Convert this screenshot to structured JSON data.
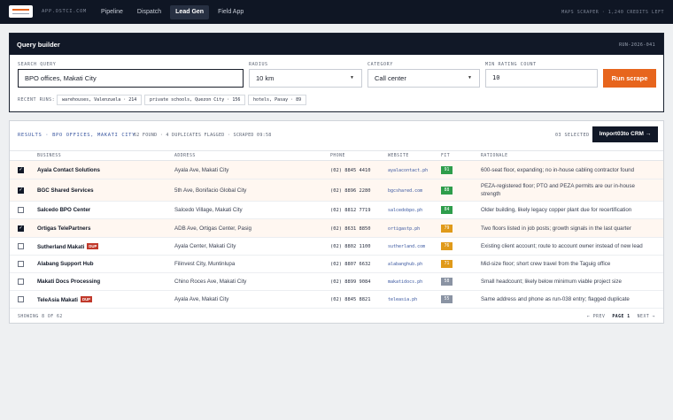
{
  "nav": {
    "domain": "APP.OSTCI.COM",
    "items": [
      {
        "label": "Pipeline",
        "active": false
      },
      {
        "label": "Dispatch",
        "active": false
      },
      {
        "label": "Lead Gen",
        "active": true
      },
      {
        "label": "Field App",
        "active": false
      }
    ],
    "credits": "MAPS SCRAPER · 1,240 CREDITS LEFT"
  },
  "query_builder": {
    "title": "Query builder",
    "run_id": "RUN-2026-041",
    "search_label": "SEARCH QUERY",
    "search_value": "BPO offices, Makati City",
    "radius_label": "RADIUS",
    "radius_value": "10 km",
    "category_label": "CATEGORY",
    "category_value": "Call center",
    "min_rating_label": "MIN RATING COUNT",
    "min_rating_value": "10",
    "run_button": "Run scrape",
    "recent_label": "RECENT RUNS:",
    "recent_runs": [
      "warehouses, Valenzuela · 214",
      "private schools, Quezon City · 156",
      "hotels, Pasay · 89"
    ]
  },
  "results": {
    "title": "RESULTS · BPO OFFICES, MAKATI CITY",
    "meta": "62 FOUND · 4 DUPLICATES FLAGGED · SCRAPED 09:58",
    "selected": "03 SELECTED",
    "crm_button": "Import03to CRM →",
    "columns": [
      "BUSINESS",
      "ADDRESS",
      "PHONE",
      "WEBSITE",
      "FIT",
      "RATIONALE"
    ],
    "rows": [
      {
        "checked": true,
        "business": "Ayala Contact Solutions",
        "dup": "",
        "address": "Ayala Ave, Makati City",
        "phone": "(02) 8845 4410",
        "website": "ayalacontact.ph",
        "fit": "91",
        "fit_color": "#2e9d4b",
        "rationale": "600-seat floor, expanding; no in-house cabling contractor found"
      },
      {
        "checked": true,
        "business": "BGC Shared Services",
        "dup": "",
        "address": "5th Ave, Bonifacio Global City",
        "phone": "(02) 8896 2280",
        "website": "bgcshared.com",
        "fit": "88",
        "fit_color": "#2e9d4b",
        "rationale": "PEZA-registered floor; PTO and PEZA permits are our in-house strength"
      },
      {
        "checked": false,
        "business": "Salcedo BPO Center",
        "dup": "",
        "address": "Salcedo Village, Makati City",
        "phone": "(02) 8812 7719",
        "website": "salcedobpo.ph",
        "fit": "84",
        "fit_color": "#2e9d4b",
        "rationale": "Older building, likely legacy copper plant due for recertification"
      },
      {
        "checked": true,
        "business": "Ortigas TelePartners",
        "dup": "",
        "address": "ADB Ave, Ortigas Center, Pasig",
        "phone": "(02) 8631 8850",
        "website": "ortigastp.ph",
        "fit": "79",
        "fit_color": "#e09a1a",
        "rationale": "Two floors listed in job posts; growth signals in the last quarter"
      },
      {
        "checked": false,
        "business": "Sutherland Makati",
        "dup": "DUP",
        "address": "Ayala Center, Makati City",
        "phone": "(02) 8802 1100",
        "website": "sutherland.com",
        "fit": "76",
        "fit_color": "#e09a1a",
        "rationale": "Existing client account; route to account owner instead of new lead"
      },
      {
        "checked": false,
        "business": "Alabang Support Hub",
        "dup": "",
        "address": "Filinvest City, Muntinlupa",
        "phone": "(02) 8807 6632",
        "website": "alabanghub.ph",
        "fit": "71",
        "fit_color": "#e09a1a",
        "rationale": "Mid-size floor; short crew travel from the Taguig office"
      },
      {
        "checked": false,
        "business": "Makati Docs Processing",
        "dup": "",
        "address": "Chino Roces Ave, Makati City",
        "phone": "(02) 8899 9084",
        "website": "makatidocs.ph",
        "fit": "58",
        "fit_color": "#8a93a3",
        "rationale": "Small headcount; likely below minimum viable project size"
      },
      {
        "checked": false,
        "business": "TeleAsia Makati",
        "dup": "DUP",
        "address": "Ayala Ave, Makati City",
        "phone": "(02) 8845 8821",
        "website": "teleasia.ph",
        "fit": "55",
        "fit_color": "#8a93a3",
        "rationale": "Same address and phone as run-038 entry; flagged duplicate"
      }
    ],
    "showing": "SHOWING 8 OF 62",
    "prev": "← PREV",
    "page": "PAGE 1",
    "next": "NEXT →"
  }
}
